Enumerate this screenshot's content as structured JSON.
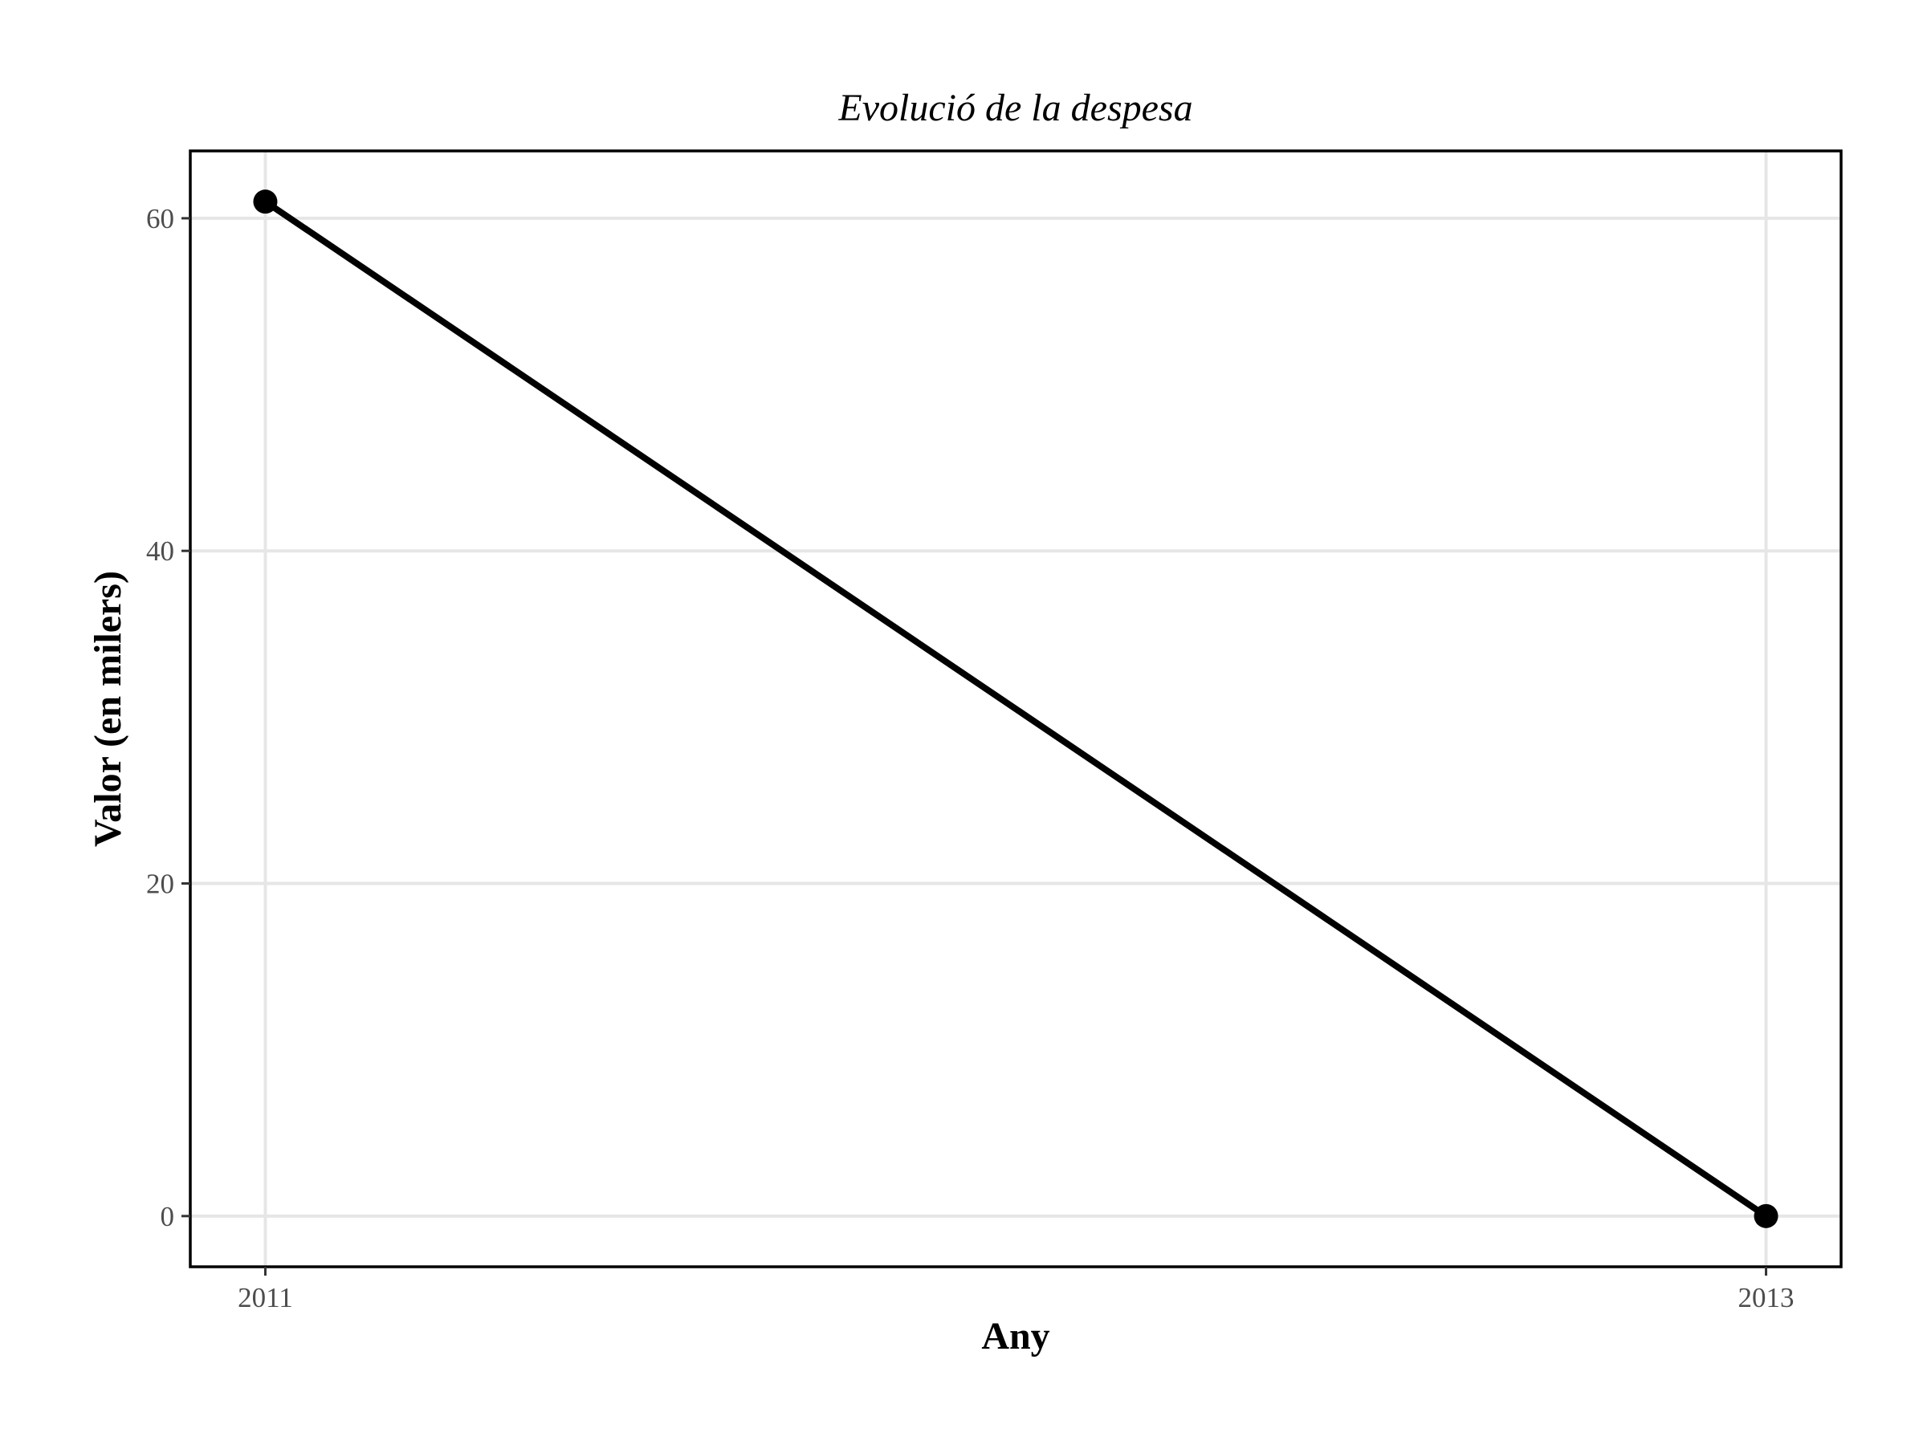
{
  "chart_data": {
    "type": "line",
    "title": "Evolució de la despesa",
    "xlabel": "Any",
    "ylabel": "Valor (en milers)",
    "x": [
      2011,
      2013
    ],
    "series": [
      {
        "values": [
          61,
          0
        ]
      }
    ],
    "xlim": [
      2010.9,
      2013.1
    ],
    "ylim": [
      -3.05,
      64.05
    ],
    "x_ticks": [
      2011,
      2013
    ],
    "x_tick_labels": [
      "2011",
      "2013"
    ],
    "y_ticks": [
      0,
      20,
      40,
      60
    ],
    "y_tick_labels": [
      "0",
      "20",
      "40",
      "60"
    ],
    "grid": true,
    "legend": "none",
    "colors": {
      "line": "#000000",
      "grid": "#e6e6e6",
      "tick_text": "#4d4d4d"
    }
  }
}
